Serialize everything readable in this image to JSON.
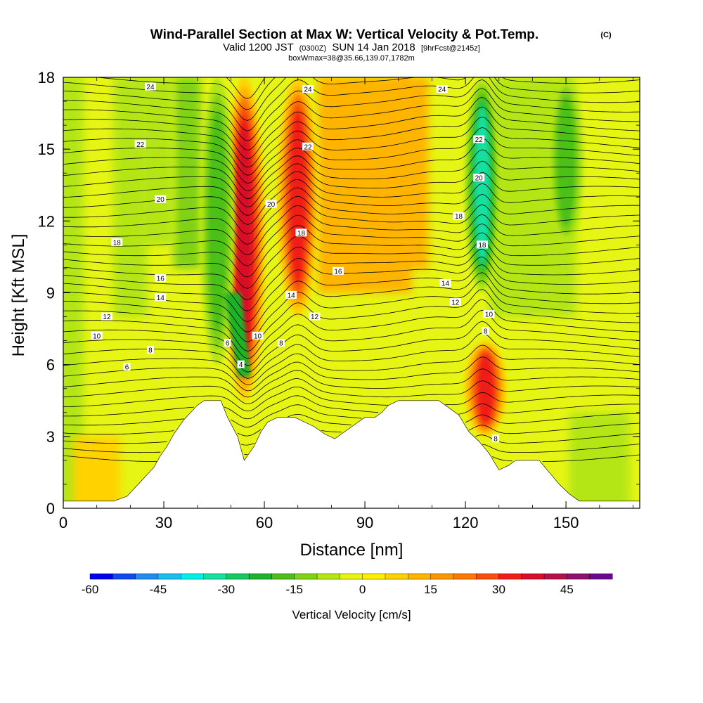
{
  "header": {
    "title": "Wind-Parallel Section at Max W: Vertical Velocity & Pot.Temp.",
    "title_suffix": "(C)",
    "subtitle_a": "Valid 1200 JST",
    "subtitle_b": "(0300Z)",
    "subtitle_c": "SUN 14 Jan 2018",
    "subtitle_d": "[9hrFcst@2145z]",
    "subtitle_line3": "boxWmax=38@35.66,139.07,1782m"
  },
  "chart_data": {
    "type": "heatmap",
    "xlabel": "Distance [nm]",
    "ylabel": "Height [Kft MSL]",
    "xlim": [
      0,
      172
    ],
    "ylim": [
      0,
      18
    ],
    "x_ticks": [
      "0",
      "30",
      "60",
      "90",
      "120",
      "150"
    ],
    "y_ticks": [
      "0",
      "3",
      "6",
      "9",
      "12",
      "15",
      "18"
    ],
    "colorbar": {
      "label": "Vertical Velocity [cm/s]",
      "range": [
        -60,
        55
      ],
      "step": 5,
      "tick_labels": [
        "-60",
        "-45",
        "-30",
        "-15",
        "0",
        "15",
        "30",
        "45"
      ],
      "colors": [
        "#0000ee",
        "#1148f0",
        "#1e8cf0",
        "#1cbef0",
        "#00f0e8",
        "#14e0a0",
        "#18c860",
        "#1cb428",
        "#4cc014",
        "#80d214",
        "#b4e614",
        "#e6f514",
        "#ffee00",
        "#ffd200",
        "#ffb400",
        "#ff9600",
        "#ff7800",
        "#f84e0c",
        "#f01e14",
        "#d80e28",
        "#b4104a",
        "#901070",
        "#6a0890"
      ]
    },
    "velocity_features": [
      {
        "type": "updraft",
        "x": 54,
        "y_range": [
          4.5,
          18
        ],
        "peak_cm_s": 38
      },
      {
        "type": "updraft",
        "x": 70,
        "y_range": [
          8,
          18
        ],
        "peak_cm_s": 32
      },
      {
        "type": "updraft",
        "x": 126,
        "y_range": [
          3,
          7
        ],
        "peak_cm_s": 35
      },
      {
        "type": "downdraft",
        "x": 125,
        "y_range": [
          9,
          18
        ],
        "peak_cm_s": -35
      },
      {
        "type": "downdraft",
        "x": 46,
        "y_range": [
          6,
          18
        ],
        "peak_cm_s": -20
      },
      {
        "type": "downdraft",
        "x": 150,
        "y_range": [
          11,
          18
        ],
        "peak_cm_s": -20
      }
    ],
    "theta_contour_labels": [
      {
        "text": "24",
        "x": 26,
        "y": 17.6
      },
      {
        "text": "24",
        "x": 73,
        "y": 17.5
      },
      {
        "text": "24",
        "x": 113,
        "y": 17.5
      },
      {
        "text": "22",
        "x": 23,
        "y": 15.2
      },
      {
        "text": "22",
        "x": 73,
        "y": 15.1
      },
      {
        "text": "22",
        "x": 124,
        "y": 15.4
      },
      {
        "text": "20",
        "x": 29,
        "y": 12.9
      },
      {
        "text": "20",
        "x": 62,
        "y": 12.7
      },
      {
        "text": "20",
        "x": 124,
        "y": 13.8
      },
      {
        "text": "18",
        "x": 16,
        "y": 11.1
      },
      {
        "text": "18",
        "x": 71,
        "y": 11.5
      },
      {
        "text": "18",
        "x": 118,
        "y": 12.2
      },
      {
        "text": "18",
        "x": 125,
        "y": 11.0
      },
      {
        "text": "16",
        "x": 29,
        "y": 9.6
      },
      {
        "text": "16",
        "x": 82,
        "y": 9.9
      },
      {
        "text": "14",
        "x": 29,
        "y": 8.8
      },
      {
        "text": "14",
        "x": 68,
        "y": 8.9
      },
      {
        "text": "14",
        "x": 114,
        "y": 9.4
      },
      {
        "text": "12",
        "x": 13,
        "y": 8.0
      },
      {
        "text": "12",
        "x": 75,
        "y": 8.0
      },
      {
        "text": "12",
        "x": 117,
        "y": 8.6
      },
      {
        "text": "10",
        "x": 10,
        "y": 7.2
      },
      {
        "text": "10",
        "x": 58,
        "y": 7.2
      },
      {
        "text": "10",
        "x": 127,
        "y": 8.1
      },
      {
        "text": "8",
        "x": 26,
        "y": 6.6
      },
      {
        "text": "8",
        "x": 65,
        "y": 6.9
      },
      {
        "text": "8",
        "x": 126,
        "y": 7.4
      },
      {
        "text": "8",
        "x": 129,
        "y": 2.9
      },
      {
        "text": "6",
        "x": 19,
        "y": 5.9
      },
      {
        "text": "6",
        "x": 49,
        "y": 6.9
      },
      {
        "text": "4",
        "x": 53,
        "y": 6.0
      }
    ],
    "terrain_profile": [
      [
        0,
        0.3
      ],
      [
        5,
        0.3
      ],
      [
        10,
        0.3
      ],
      [
        15,
        0.3
      ],
      [
        19,
        0.5
      ],
      [
        21,
        0.8
      ],
      [
        23,
        1.1
      ],
      [
        25,
        1.4
      ],
      [
        27,
        1.7
      ],
      [
        29,
        2.2
      ],
      [
        31,
        2.6
      ],
      [
        33,
        3.1
      ],
      [
        36,
        3.7
      ],
      [
        38,
        4.0
      ],
      [
        40,
        4.3
      ],
      [
        42,
        4.5
      ],
      [
        47,
        4.5
      ],
      [
        49,
        3.8
      ],
      [
        52,
        3.0
      ],
      [
        54,
        2.0
      ],
      [
        57,
        2.6
      ],
      [
        59,
        3.2
      ],
      [
        61,
        3.6
      ],
      [
        64,
        3.8
      ],
      [
        69,
        3.8
      ],
      [
        72,
        3.6
      ],
      [
        75,
        3.4
      ],
      [
        78,
        3.1
      ],
      [
        81,
        2.9
      ],
      [
        84,
        3.2
      ],
      [
        87,
        3.5
      ],
      [
        90,
        3.8
      ],
      [
        93,
        3.8
      ],
      [
        95,
        4.0
      ],
      [
        97,
        4.3
      ],
      [
        100,
        4.5
      ],
      [
        112,
        4.5
      ],
      [
        115,
        4.2
      ],
      [
        118,
        3.9
      ],
      [
        121,
        3.2
      ],
      [
        124,
        2.8
      ],
      [
        127,
        2.3
      ],
      [
        130,
        1.6
      ],
      [
        133,
        1.8
      ],
      [
        135,
        2.0
      ],
      [
        142,
        2.0
      ],
      [
        145,
        1.5
      ],
      [
        148,
        1.0
      ],
      [
        151,
        0.6
      ],
      [
        154,
        0.3
      ],
      [
        172,
        0.3
      ]
    ]
  }
}
